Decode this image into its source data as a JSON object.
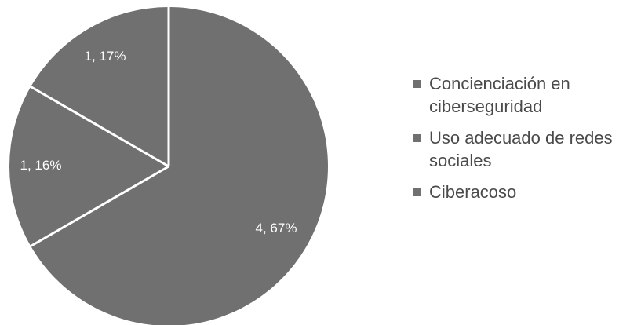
{
  "chart_data": {
    "type": "pie",
    "start_angle_deg": 0,
    "direction": "clockwise",
    "slice_color": "#707070",
    "separator_color": "#ffffff",
    "slices": [
      {
        "name": "Concienciación en ciberseguridad",
        "value": 4,
        "percent": 67,
        "label": "4, 67%"
      },
      {
        "name": "Uso adecuado de redes sociales",
        "value": 1,
        "percent": 16,
        "label": "1, 16%"
      },
      {
        "name": "Ciberacoso",
        "value": 1,
        "percent": 17,
        "label": "1, 17%"
      }
    ],
    "legend_position": "right"
  }
}
